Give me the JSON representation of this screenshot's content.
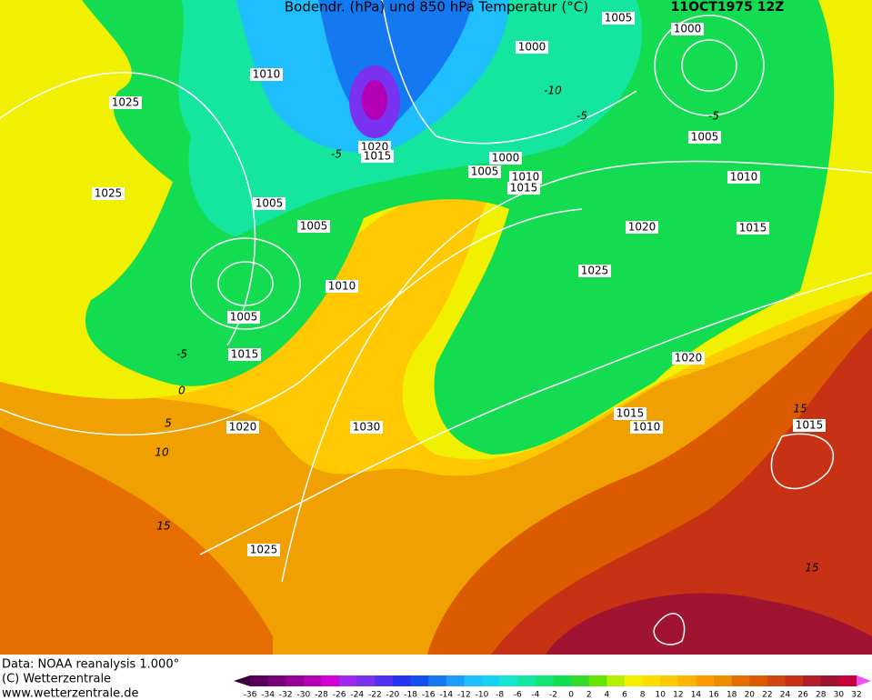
{
  "header": {
    "title": "Bodendr. (hPa) und 850 hPa Temperatur (°C)",
    "date": "11OCT1975 12Z"
  },
  "footer": {
    "source": "Data: NOAA reanalysis 1.000°",
    "copyright": "(C) Wetterzentrale",
    "url": "www.wetterzentrale.de"
  },
  "isobar_labels": [
    1025,
    1010,
    1020,
    1015,
    1000,
    1005,
    1000,
    1005,
    1000,
    1005,
    1010,
    1015,
    1025,
    1005,
    1005,
    1010,
    1020,
    1015,
    1025,
    1010,
    1005,
    1015,
    1020,
    1015,
    1010,
    1020,
    1030,
    1015,
    1025
  ],
  "temperature_labels": [
    -10,
    -5,
    -5,
    -5,
    -5,
    0,
    5,
    10,
    15,
    15,
    15
  ],
  "colorbar": {
    "ticks": [
      -36,
      -34,
      -32,
      -30,
      -28,
      -26,
      -24,
      -22,
      -20,
      -18,
      -16,
      -14,
      -12,
      -10,
      -8,
      -6,
      -4,
      -2,
      0,
      2,
      4,
      6,
      8,
      10,
      12,
      14,
      16,
      18,
      20,
      22,
      24,
      26,
      28,
      30,
      32
    ],
    "colors": [
      "#3c003c",
      "#5a005a",
      "#780078",
      "#960096",
      "#b400b4",
      "#d200d2",
      "#a028f0",
      "#7832f0",
      "#5032f0",
      "#2832f0",
      "#1450f0",
      "#1478f0",
      "#1e9bff",
      "#1ebeff",
      "#14d2f0",
      "#14e6d2",
      "#14e6a0",
      "#14e678",
      "#14dc50",
      "#32dc28",
      "#64e600",
      "#b4f000",
      "#f0f000",
      "#ffdc00",
      "#ffc800",
      "#ffb400",
      "#ff9b00",
      "#f08c00",
      "#e66e00",
      "#dc5a00",
      "#d24614",
      "#c83214",
      "#b41e28",
      "#a01432",
      "#c8003c",
      "#e60078",
      "#ff14c8",
      "#f050f0"
    ]
  }
}
